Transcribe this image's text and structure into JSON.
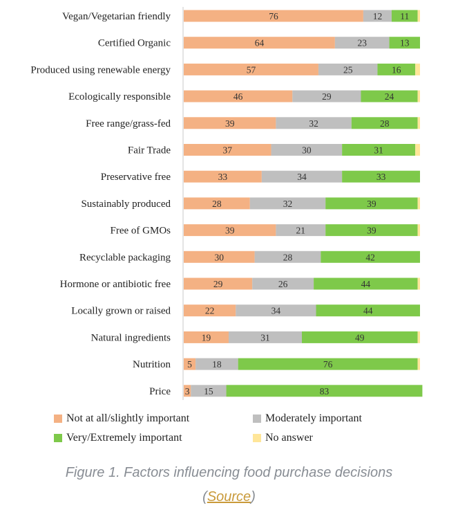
{
  "chart_data": {
    "type": "bar",
    "orientation": "horizontal",
    "stacked": true,
    "categories": [
      "Vegan/Vegetarian friendly",
      "Certified Organic",
      "Produced using renewable energy",
      "Ecologically responsible",
      "Free range/grass-fed",
      "Fair Trade",
      "Preservative free",
      "Sustainably produced",
      "Free of GMOs",
      "Recyclable packaging",
      "Hormone or antibiotic free",
      "Locally grown or raised",
      "Natural ingredients",
      "Nutrition",
      "Price"
    ],
    "series": [
      {
        "name": "Not at all/slightly important",
        "color": "#f4b183",
        "values": [
          76,
          64,
          57,
          46,
          39,
          37,
          33,
          28,
          39,
          30,
          29,
          22,
          19,
          5,
          3
        ]
      },
      {
        "name": "Moderately important",
        "color": "#bfbfbf",
        "values": [
          12,
          23,
          25,
          29,
          32,
          30,
          34,
          32,
          21,
          28,
          26,
          34,
          31,
          18,
          15
        ]
      },
      {
        "name": "Very/Extremely important",
        "color": "#7ec94a",
        "values": [
          11,
          13,
          16,
          24,
          28,
          31,
          33,
          39,
          39,
          42,
          44,
          44,
          49,
          76,
          83
        ]
      },
      {
        "name": "No answer",
        "color": "#ffe699",
        "values": [
          1,
          0,
          2,
          1,
          1,
          2,
          0,
          1,
          1,
          0,
          1,
          0,
          1,
          1,
          0
        ]
      }
    ],
    "xlim": [
      0,
      100
    ],
    "legend_position": "bottom",
    "grid": false
  },
  "caption": {
    "text": "Figure 1. Factors influencing food purchase decisions",
    "source_open": "(",
    "source_link": "Source",
    "source_close": ")"
  }
}
